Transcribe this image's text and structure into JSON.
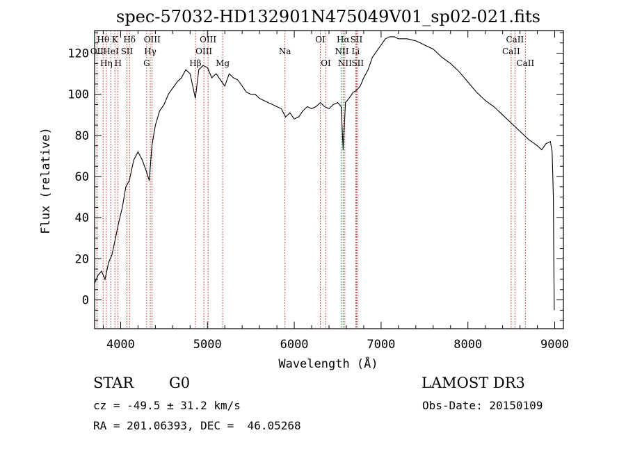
{
  "chart_data": {
    "type": "line",
    "title": "spec-57032-HD132901N475049V01_sp02-021.fits",
    "xlabel": "Wavelength (Å)",
    "ylabel": "Flux (relative)",
    "xlim": [
      3700,
      9100
    ],
    "ylim": [
      -14,
      131
    ],
    "xticks": [
      4000,
      5000,
      6000,
      7000,
      8000,
      9000
    ],
    "yticks": [
      0,
      20,
      40,
      60,
      80,
      100,
      120
    ],
    "grid": false,
    "series": [
      {
        "points": [
          [
            3700,
            8
          ],
          [
            3740,
            12
          ],
          [
            3780,
            14
          ],
          [
            3820,
            10
          ],
          [
            3860,
            18
          ],
          [
            3900,
            22
          ],
          [
            3940,
            30
          ],
          [
            3980,
            38
          ],
          [
            4020,
            45
          ],
          [
            4060,
            55
          ],
          [
            4100,
            58
          ],
          [
            4150,
            68
          ],
          [
            4200,
            72
          ],
          [
            4250,
            68
          ],
          [
            4300,
            62
          ],
          [
            4330,
            58
          ],
          [
            4360,
            75
          ],
          [
            4400,
            85
          ],
          [
            4450,
            92
          ],
          [
            4500,
            95
          ],
          [
            4550,
            100
          ],
          [
            4600,
            103
          ],
          [
            4650,
            106
          ],
          [
            4700,
            108
          ],
          [
            4750,
            112
          ],
          [
            4800,
            110
          ],
          [
            4861,
            98
          ],
          [
            4900,
            112
          ],
          [
            4950,
            114
          ],
          [
            5000,
            113
          ],
          [
            5050,
            108
          ],
          [
            5100,
            110
          ],
          [
            5150,
            107
          ],
          [
            5200,
            104
          ],
          [
            5250,
            110
          ],
          [
            5300,
            108
          ],
          [
            5350,
            107
          ],
          [
            5400,
            104
          ],
          [
            5450,
            101
          ],
          [
            5500,
            100
          ],
          [
            5550,
            100
          ],
          [
            5600,
            98
          ],
          [
            5650,
            97
          ],
          [
            5700,
            96
          ],
          [
            5750,
            95
          ],
          [
            5800,
            94
          ],
          [
            5850,
            93
          ],
          [
            5900,
            89
          ],
          [
            5950,
            91
          ],
          [
            6000,
            88
          ],
          [
            6050,
            89
          ],
          [
            6100,
            92
          ],
          [
            6150,
            94
          ],
          [
            6200,
            93
          ],
          [
            6250,
            94
          ],
          [
            6300,
            96
          ],
          [
            6350,
            94
          ],
          [
            6400,
            93
          ],
          [
            6450,
            95
          ],
          [
            6500,
            96
          ],
          [
            6540,
            94
          ],
          [
            6563,
            73
          ],
          [
            6590,
            96
          ],
          [
            6630,
            98
          ],
          [
            6680,
            101
          ],
          [
            6720,
            102
          ],
          [
            6760,
            104
          ],
          [
            6800,
            108
          ],
          [
            6850,
            112
          ],
          [
            6900,
            118
          ],
          [
            6950,
            121
          ],
          [
            7000,
            124
          ],
          [
            7050,
            127
          ],
          [
            7100,
            128
          ],
          [
            7150,
            128
          ],
          [
            7200,
            127
          ],
          [
            7300,
            127
          ],
          [
            7400,
            126
          ],
          [
            7500,
            124
          ],
          [
            7600,
            122
          ],
          [
            7700,
            118
          ],
          [
            7800,
            115
          ],
          [
            7900,
            111
          ],
          [
            8000,
            106
          ],
          [
            8100,
            101
          ],
          [
            8200,
            97
          ],
          [
            8300,
            94
          ],
          [
            8400,
            90
          ],
          [
            8500,
            86
          ],
          [
            8600,
            82
          ],
          [
            8700,
            78
          ],
          [
            8800,
            75
          ],
          [
            8850,
            73
          ],
          [
            8900,
            76
          ],
          [
            8950,
            77
          ],
          [
            8970,
            72
          ],
          [
            8985,
            50
          ],
          [
            8990,
            15
          ],
          [
            8995,
            -5
          ]
        ]
      }
    ],
    "spectral_lines": [
      {
        "w": 3727,
        "label": "OII",
        "row": 2
      },
      {
        "w": 3798,
        "label": "Hθ",
        "row": 1
      },
      {
        "w": 3835,
        "label": "Hη",
        "row": 3
      },
      {
        "w": 3889,
        "label": "HeI",
        "row": 2
      },
      {
        "w": 3934,
        "label": "K",
        "row": 1
      },
      {
        "w": 3970,
        "label": "H",
        "row": 3
      },
      {
        "w": 4072,
        "label": "SII",
        "row": 2
      },
      {
        "w": 4102,
        "label": "Hδ",
        "row": 1
      },
      {
        "w": 4300,
        "label": "G",
        "row": 3
      },
      {
        "w": 4341,
        "label": "Hγ",
        "row": 2
      },
      {
        "w": 4363,
        "label": "OIII",
        "row": 1
      },
      {
        "w": 4861,
        "label": "Hβ",
        "row": 3
      },
      {
        "w": 4959,
        "label": "OIII",
        "row": 2
      },
      {
        "w": 5007,
        "label": "OIII",
        "row": 1
      },
      {
        "w": 5175,
        "label": "Mg",
        "row": 3
      },
      {
        "w": 5893,
        "label": "Na",
        "row": 2
      },
      {
        "w": 6300,
        "label": "OI",
        "row": 1
      },
      {
        "w": 6364,
        "label": "OI",
        "row": 3
      },
      {
        "w": 6548,
        "label": "NII",
        "row": 2
      },
      {
        "w": 6563,
        "label": "Hα",
        "row": 1
      },
      {
        "w": 6583,
        "label": "NII",
        "row": 3
      },
      {
        "w": 6707,
        "label": "Li",
        "row": 2
      },
      {
        "w": 6716,
        "label": "SII",
        "row": 1
      },
      {
        "w": 6731,
        "label": "SII",
        "row": 3
      },
      {
        "w": 8498,
        "label": "CaII",
        "row": 2
      },
      {
        "w": 8542,
        "label": "CaII",
        "row": 1
      },
      {
        "w": 8662,
        "label": "CaII",
        "row": 3
      }
    ]
  },
  "info": {
    "class": "STAR",
    "subclass": "G0",
    "survey": "LAMOST DR3",
    "cz": "cz = -49.5 ± 31.2 km/s",
    "obs_date": "Obs-Date: 20150109",
    "coords": "RA = 201.06393, DEC =  46.05268"
  }
}
